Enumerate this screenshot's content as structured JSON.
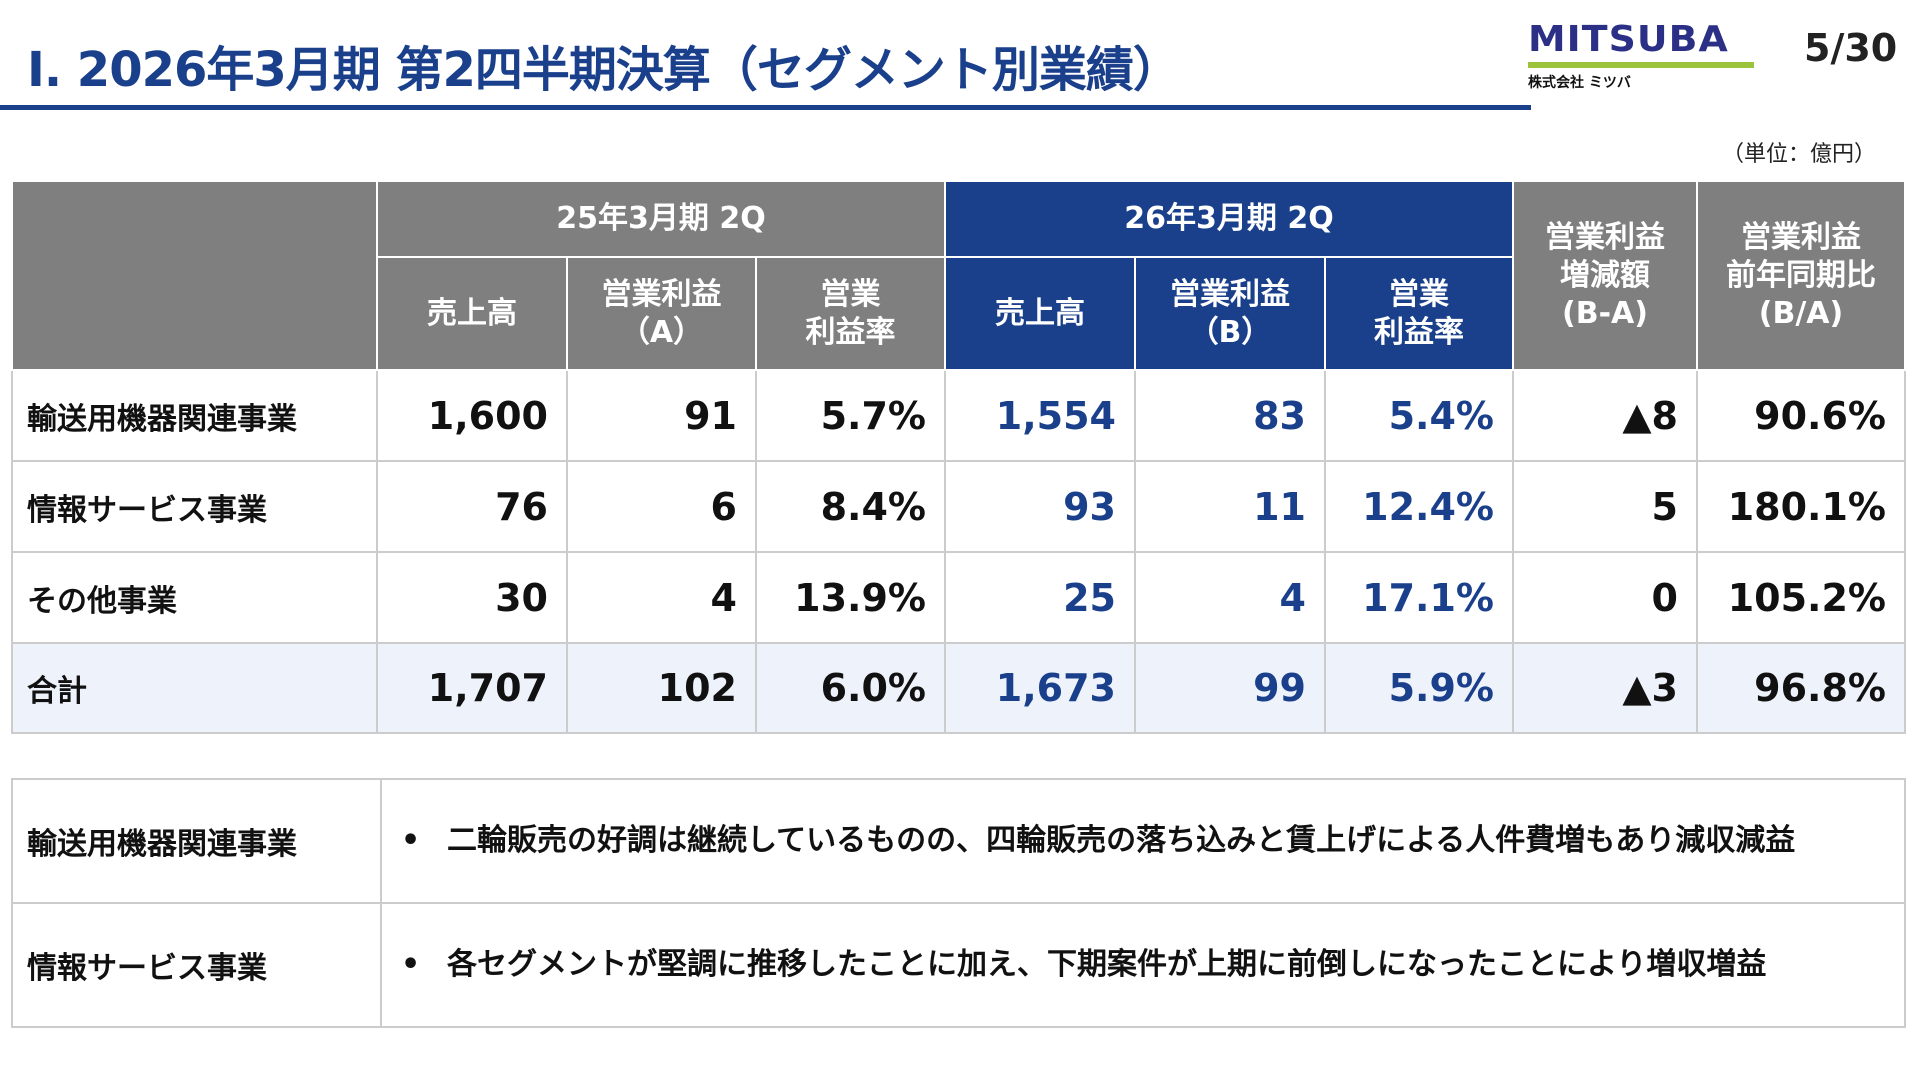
{
  "header": {
    "title": "Ⅰ. 2026年3月期 第2四半期決算（セグメント別業績）",
    "logo_text": "MITSUBA",
    "logo_subtext": "株式会社 ミツバ",
    "page": "5/30",
    "unit": "（単位：億円）"
  },
  "colors": {
    "accent": "#1a3f8b",
    "header_gray": "#7f7f7f",
    "logo_green": "#9cc33c",
    "total_row": "#eef3fb"
  },
  "table": {
    "group_prev": "25年3月期 2Q",
    "group_curr": "26年3月期 2Q",
    "col_sales": "売上高",
    "col_op_a": [
      "営業利益",
      "（A）"
    ],
    "col_op_b": [
      "営業利益",
      "（B）"
    ],
    "col_margin": [
      "営業",
      "利益率"
    ],
    "col_diff": [
      "営業利益",
      "増減額",
      "(B-A)"
    ],
    "col_ratio": [
      "営業利益",
      "前年同期比",
      "(B/A)"
    ],
    "rows": [
      {
        "label": "輸送用機器関連事業",
        "v": [
          "1,600",
          "91",
          "5.7%",
          "1,554",
          "83",
          "5.4%",
          "▲8",
          "90.6%"
        ]
      },
      {
        "label": "情報サービス事業",
        "v": [
          "76",
          "6",
          "8.4%",
          "93",
          "11",
          "12.4%",
          "5",
          "180.1%"
        ]
      },
      {
        "label": "その他事業",
        "v": [
          "30",
          "4",
          "13.9%",
          "25",
          "4",
          "17.1%",
          "0",
          "105.2%"
        ]
      },
      {
        "label": "合計",
        "v": [
          "1,707",
          "102",
          "6.0%",
          "1,673",
          "99",
          "5.9%",
          "▲3",
          "96.8%"
        ]
      }
    ]
  },
  "notes": [
    {
      "label": "輸送用機器関連事業",
      "bullet": "•",
      "text": "二輪販売の好調は継続しているものの、四輪販売の落ち込みと賃上げによる人件費増もあり減収減益"
    },
    {
      "label": "情報サービス事業",
      "bullet": "•",
      "text": "各セグメントが堅調に推移したことに加え、下期案件が上期に前倒しになったことにより増収増益"
    }
  ]
}
